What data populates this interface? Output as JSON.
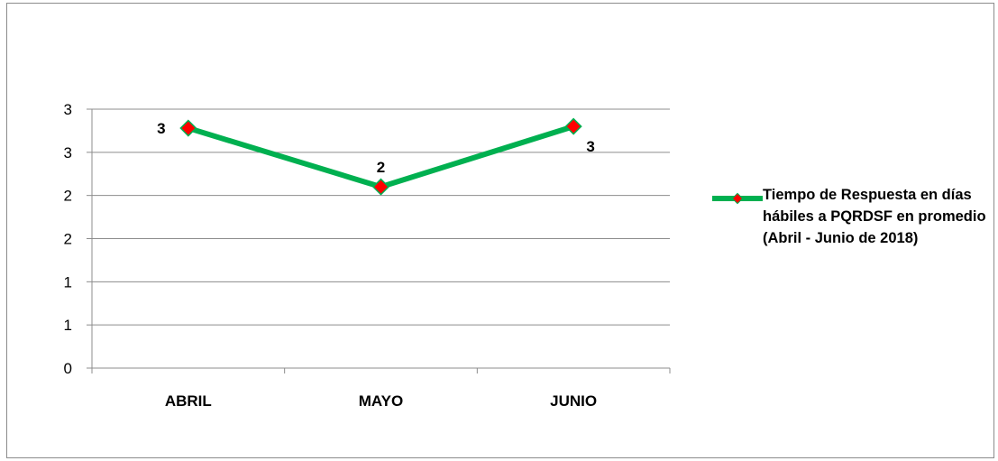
{
  "chart_data": {
    "type": "line",
    "categories": [
      "ABRIL",
      "MAYO",
      "JUNIO"
    ],
    "series": [
      {
        "name": "Tiempo de Respuesta  en días hábiles  a PQRDSF en promedio (Abril - Junio de 2018)",
        "values": [
          2.78,
          2.1,
          2.8
        ],
        "data_labels": [
          "3",
          "2",
          "3"
        ]
      }
    ],
    "yticks": [
      0,
      0.5,
      1,
      1.5,
      2,
      2.5,
      3
    ],
    "ytick_labels": [
      "0",
      "1",
      "1",
      "2",
      "2",
      "3",
      "3"
    ],
    "ylim": [
      0,
      3
    ],
    "grid": true,
    "legend_position": "right",
    "title": "",
    "xlabel": "",
    "ylabel": "",
    "line_color": "#00b050",
    "marker_color": "#ff0000"
  }
}
